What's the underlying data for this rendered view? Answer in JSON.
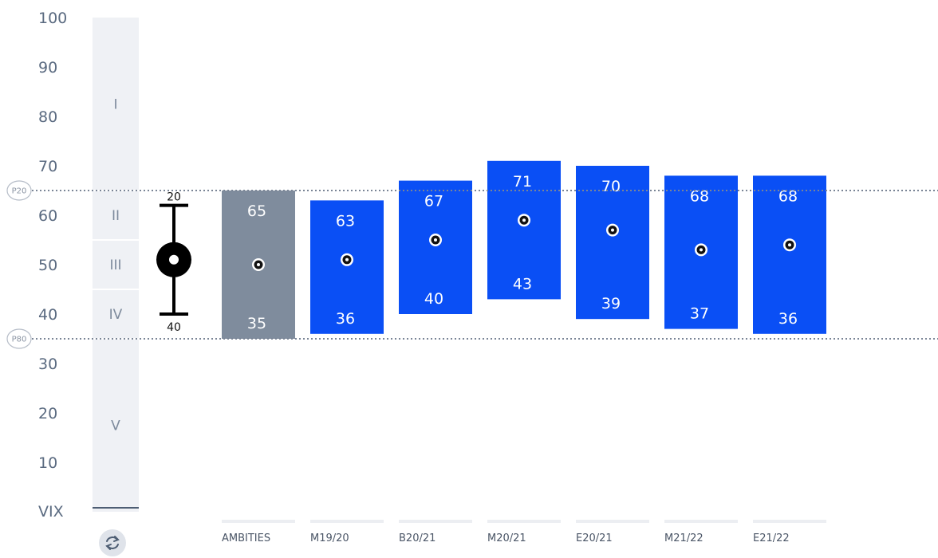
{
  "chart_data": {
    "type": "bar",
    "ylabel": "VIX",
    "ylim": [
      0,
      100
    ],
    "yticks": [
      10,
      20,
      30,
      40,
      50,
      60,
      70,
      80,
      90,
      100
    ],
    "bands": [
      {
        "label": "I",
        "from": 65,
        "to": 100
      },
      {
        "label": "II",
        "from": 55,
        "to": 65
      },
      {
        "label": "III",
        "from": 45,
        "to": 55
      },
      {
        "label": "IV",
        "from": 35,
        "to": 45
      },
      {
        "label": "V",
        "from": 0,
        "to": 35
      }
    ],
    "reference_lines": [
      {
        "label": "P20",
        "value": 65
      },
      {
        "label": "P80",
        "value": 35
      }
    ],
    "ambition_range": {
      "top_label": "20",
      "bottom_label": "40",
      "high": 62,
      "low": 40,
      "mid": 51
    },
    "categories": [
      "AMBITIES",
      "M19/20",
      "B20/21",
      "M20/21",
      "E20/21",
      "M21/22",
      "E21/22"
    ],
    "series": [
      {
        "high": [
          65,
          63,
          67,
          71,
          70,
          68,
          68
        ],
        "low": [
          35,
          36,
          40,
          43,
          39,
          37,
          36
        ],
        "mid": [
          50,
          51,
          55,
          59,
          57,
          53,
          54
        ]
      }
    ],
    "colors": {
      "ambities": "#7f8c9d",
      "bar": "#0a4ff5",
      "axis": "#5a6a80",
      "band_bg": "#eff1f5"
    }
  },
  "controls": {
    "refresh_icon": "refresh-icon"
  }
}
